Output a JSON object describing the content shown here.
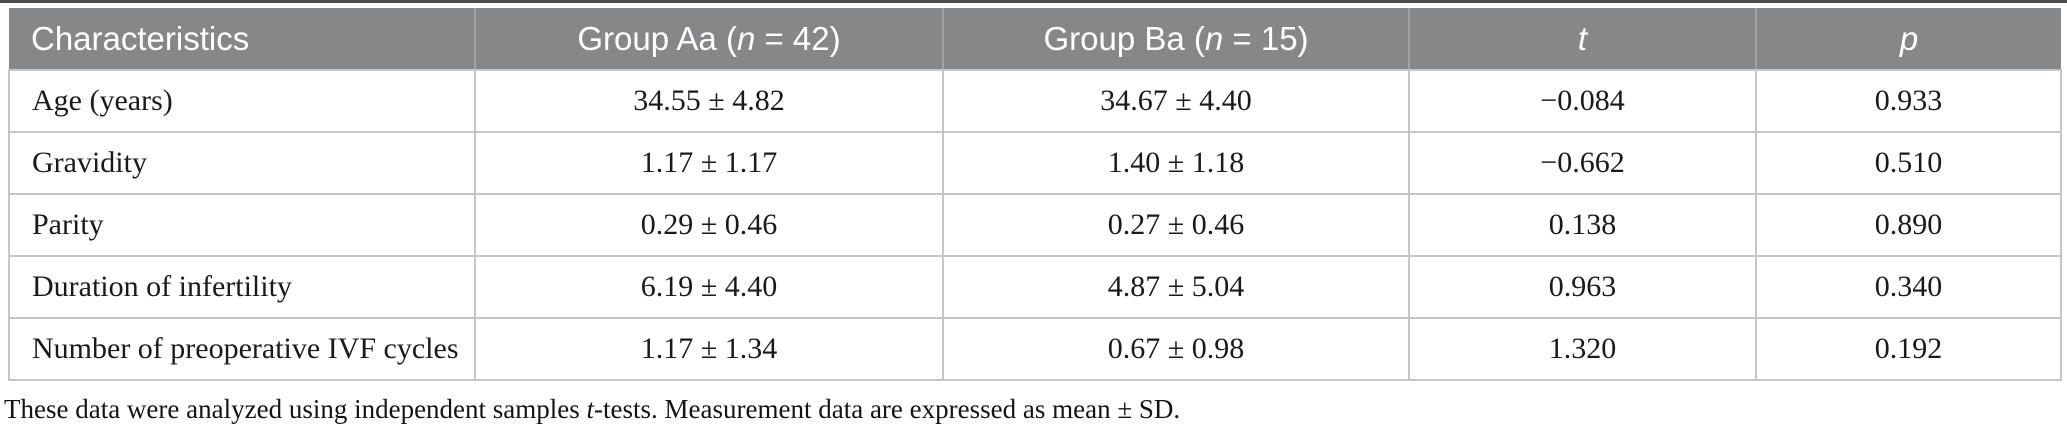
{
  "table": {
    "columns": [
      {
        "label": "Characteristics"
      },
      {
        "prefix": "Group Aa (",
        "italic": "n",
        "suffix": " = 42)"
      },
      {
        "prefix": "Group Ba (",
        "italic": "n",
        "suffix": " = 15)"
      },
      {
        "italic": "t"
      },
      {
        "italic": "p"
      }
    ],
    "rows": [
      {
        "label": "Age (years)",
        "group_a": "34.55 ± 4.82",
        "group_b": "34.67 ± 4.40",
        "t": "−0.084",
        "p": "0.933"
      },
      {
        "label": "Gravidity",
        "group_a": "1.17 ± 1.17",
        "group_b": "1.40 ± 1.18",
        "t": "−0.662",
        "p": "0.510"
      },
      {
        "label": "Parity",
        "group_a": "0.29 ± 0.46",
        "group_b": "0.27 ± 0.46",
        "t": "0.138",
        "p": "0.890"
      },
      {
        "label": "Duration of infertility",
        "group_a": "6.19 ± 4.40",
        "group_b": "4.87 ± 5.04",
        "t": "0.963",
        "p": "0.340"
      },
      {
        "label": "Number of preoperative IVF cycles",
        "group_a": "1.17 ± 1.34",
        "group_b": "0.67 ± 0.98",
        "t": "1.320",
        "p": "0.192"
      }
    ]
  },
  "footnote": {
    "part1": "These data were analyzed using independent samples ",
    "italic": "t",
    "part2": "-tests. Measurement data are expressed as mean ± SD."
  },
  "colors": {
    "header_bg": "#858789",
    "header_text": "#ffffff",
    "header_divider": "#a0a2a3",
    "row_divider": "#c6c6c6",
    "body_text": "#1a1a1a",
    "top_rule": "#4d4d4f"
  }
}
